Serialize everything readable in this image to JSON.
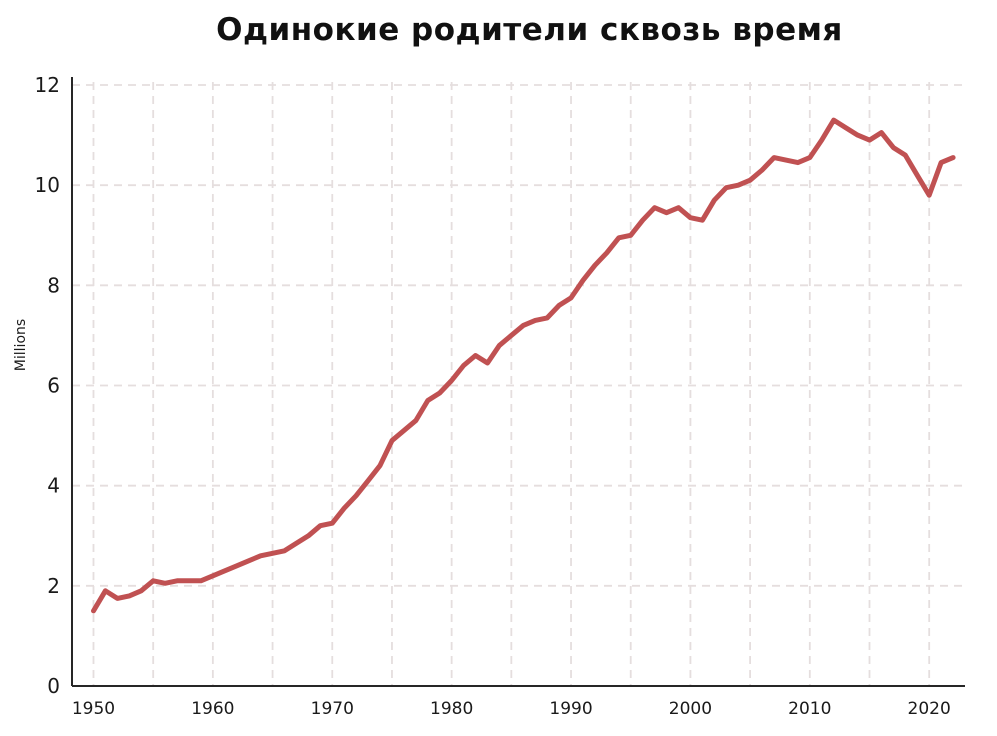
{
  "page": {
    "background_color": "#ffffff"
  },
  "chart_data": {
    "type": "line",
    "title": "Одинокие родители сквозь время",
    "xlabel": "",
    "ylabel": "Millions",
    "x": [
      1950,
      1951,
      1952,
      1953,
      1954,
      1955,
      1956,
      1957,
      1958,
      1959,
      1960,
      1961,
      1962,
      1963,
      1964,
      1965,
      1966,
      1967,
      1968,
      1969,
      1970,
      1971,
      1972,
      1973,
      1974,
      1975,
      1976,
      1977,
      1978,
      1979,
      1980,
      1981,
      1982,
      1983,
      1984,
      1985,
      1986,
      1987,
      1988,
      1989,
      1990,
      1991,
      1992,
      1993,
      1994,
      1995,
      1996,
      1997,
      1998,
      1999,
      2000,
      2001,
      2002,
      2003,
      2004,
      2005,
      2006,
      2007,
      2008,
      2009,
      2010,
      2011,
      2012,
      2013,
      2014,
      2015,
      2016,
      2017,
      2018,
      2019,
      2020,
      2021,
      2022
    ],
    "values": [
      1.5,
      1.9,
      1.75,
      1.8,
      1.9,
      2.1,
      2.05,
      2.1,
      2.1,
      2.1,
      2.2,
      2.3,
      2.4,
      2.5,
      2.6,
      2.65,
      2.7,
      2.85,
      3.0,
      3.2,
      3.25,
      3.55,
      3.8,
      4.1,
      4.4,
      4.9,
      5.1,
      5.3,
      5.7,
      5.85,
      6.1,
      6.4,
      6.6,
      6.45,
      6.8,
      7.0,
      7.2,
      7.3,
      7.35,
      7.6,
      7.75,
      8.1,
      8.4,
      8.65,
      8.95,
      9.0,
      9.3,
      9.55,
      9.45,
      9.55,
      9.35,
      9.3,
      9.7,
      9.95,
      10.0,
      10.1,
      10.3,
      10.55,
      10.5,
      10.45,
      10.55,
      10.9,
      11.3,
      11.15,
      11.0,
      10.9,
      11.05,
      10.75,
      10.6,
      10.2,
      9.8,
      10.45,
      10.55
    ],
    "xlim": [
      1948.2,
      2023
    ],
    "ylim": [
      0,
      12
    ],
    "xticks": [
      1950,
      1960,
      1970,
      1980,
      1990,
      2000,
      2010,
      2020
    ],
    "yticks": [
      0,
      2,
      4,
      6,
      8,
      10,
      12
    ],
    "grid": true,
    "grid_style": "dashed",
    "grid_interval_x_years": 5,
    "legend": "none",
    "line_color": "#c05152",
    "grid_color": "#e5dede",
    "axis_color": "#262626",
    "tick_label_color": "#1a1a1a"
  }
}
